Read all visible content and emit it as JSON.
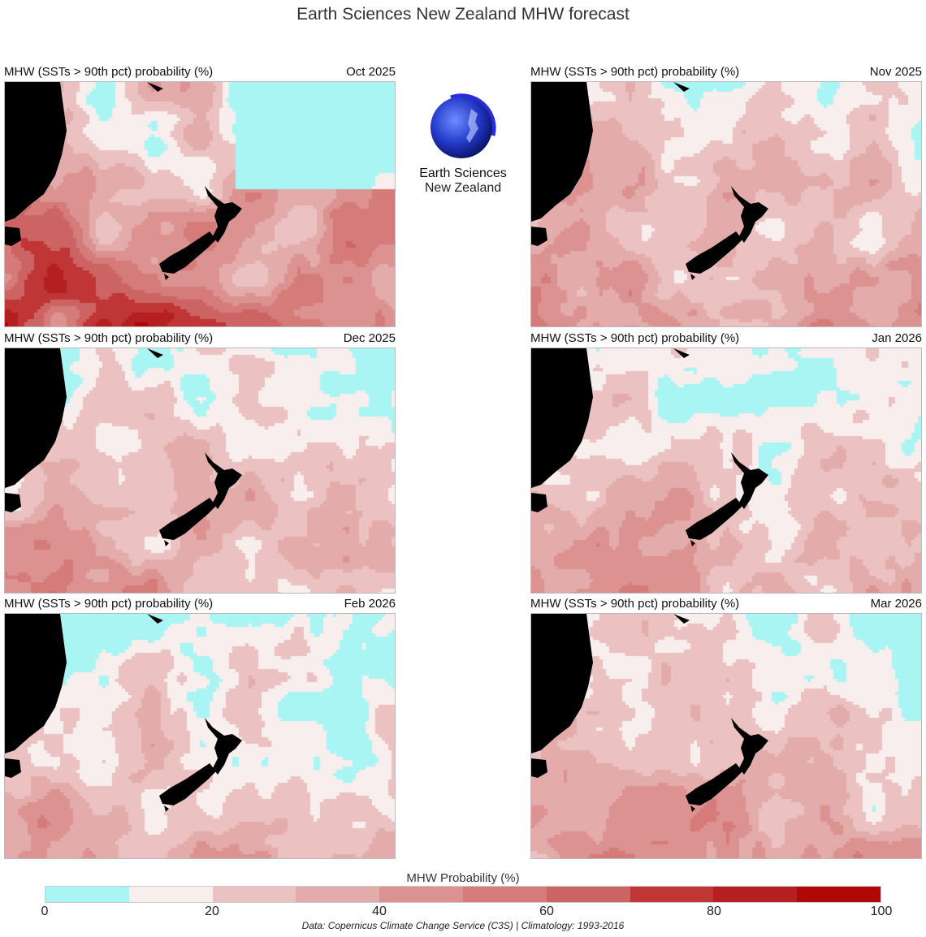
{
  "title": "Earth Sciences New Zealand MHW forecast",
  "logo": {
    "line1": "Earth Sciences",
    "line2": "New Zealand"
  },
  "panels": [
    {
      "title": "MHW (SSTs > 90th pct) probability (%)",
      "date": "Oct 2025",
      "typical_probability_pct": 42
    },
    {
      "title": "MHW (SSTs > 90th pct) probability (%)",
      "date": "Nov 2025",
      "typical_probability_pct": 30
    },
    {
      "title": "MHW (SSTs > 90th pct) probability (%)",
      "date": "Dec 2025",
      "typical_probability_pct": 23
    },
    {
      "title": "MHW (SSTs > 90th pct) probability (%)",
      "date": "Jan 2026",
      "typical_probability_pct": 22
    },
    {
      "title": "MHW (SSTs > 90th pct) probability (%)",
      "date": "Feb 2026",
      "typical_probability_pct": 23
    },
    {
      "title": "MHW (SSTs > 90th pct) probability (%)",
      "date": "Mar 2026",
      "typical_probability_pct": 27
    }
  ],
  "colorbar": {
    "label": "MHW Probability (%)",
    "range": [
      0,
      100
    ],
    "ticks": [
      "0",
      "20",
      "40",
      "60",
      "80",
      "100"
    ],
    "colors": [
      "#a8f5f4",
      "#f8eeee",
      "#ebc1c1",
      "#e3abaa",
      "#dc9291",
      "#d57b79",
      "#cd6464",
      "#c03535",
      "#b51f1f",
      "#b00707"
    ]
  },
  "credit": "Data: Copernicus Climate Change Service (C3S) | Climatology: 1993-2016"
}
